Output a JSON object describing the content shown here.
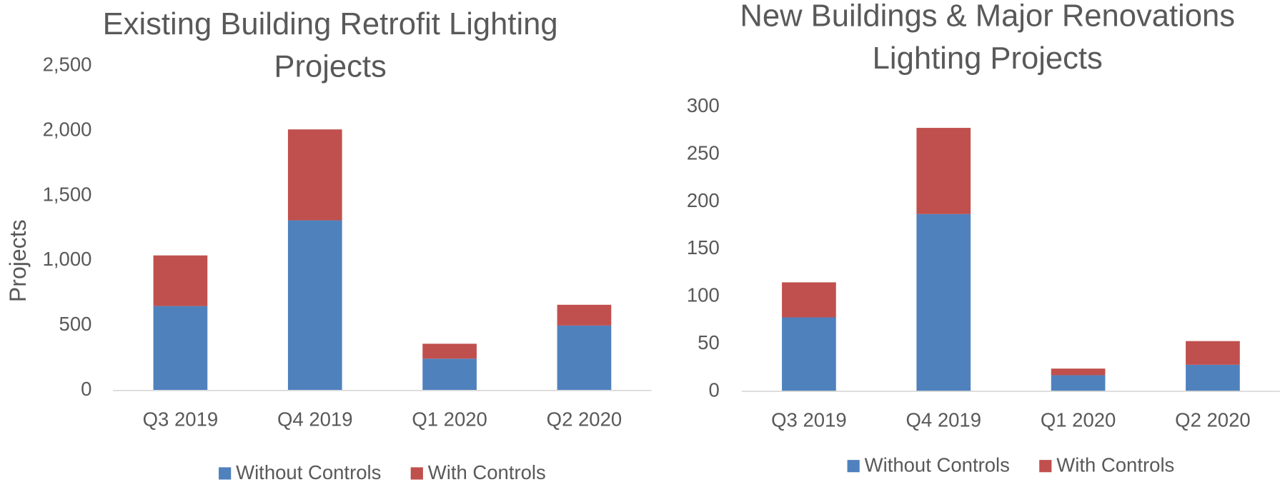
{
  "chart_data": [
    {
      "type": "bar",
      "stacked": true,
      "title": "Existing Building Retrofit Lighting Projects",
      "ylabel": "Projects",
      "categories": [
        "Q3 2019",
        "Q4 2019",
        "Q1 2020",
        "Q2 2020"
      ],
      "series": [
        {
          "name": "Without Controls",
          "color": "#4f81bd",
          "values": [
            650,
            1310,
            245,
            500
          ]
        },
        {
          "name": "With Controls",
          "color": "#c0504d",
          "values": [
            390,
            700,
            115,
            160
          ]
        }
      ],
      "ylim": [
        0,
        2500
      ],
      "yticks": [
        0,
        500,
        {
          "value": 1000,
          "label": "1,000"
        },
        {
          "value": 1500,
          "label": "1,500"
        },
        {
          "value": 2000,
          "label": "2,000"
        },
        {
          "value": 2500,
          "label": "2,500"
        }
      ],
      "grid": false,
      "legend": "bottom"
    },
    {
      "type": "bar",
      "stacked": true,
      "title": "New Buildings & Major Renovations Lighting Projects",
      "categories": [
        "Q3 2019",
        "Q4 2019",
        "Q1 2020",
        "Q2 2020"
      ],
      "series": [
        {
          "name": "Without Controls",
          "color": "#4f81bd",
          "values": [
            78,
            187,
            17,
            28
          ]
        },
        {
          "name": "With Controls",
          "color": "#c0504d",
          "values": [
            37,
            91,
            7,
            25
          ]
        }
      ],
      "ylim": [
        0,
        300
      ],
      "yticks": [
        0,
        50,
        100,
        150,
        200,
        250,
        300
      ],
      "grid": false,
      "legend": "bottom"
    }
  ]
}
